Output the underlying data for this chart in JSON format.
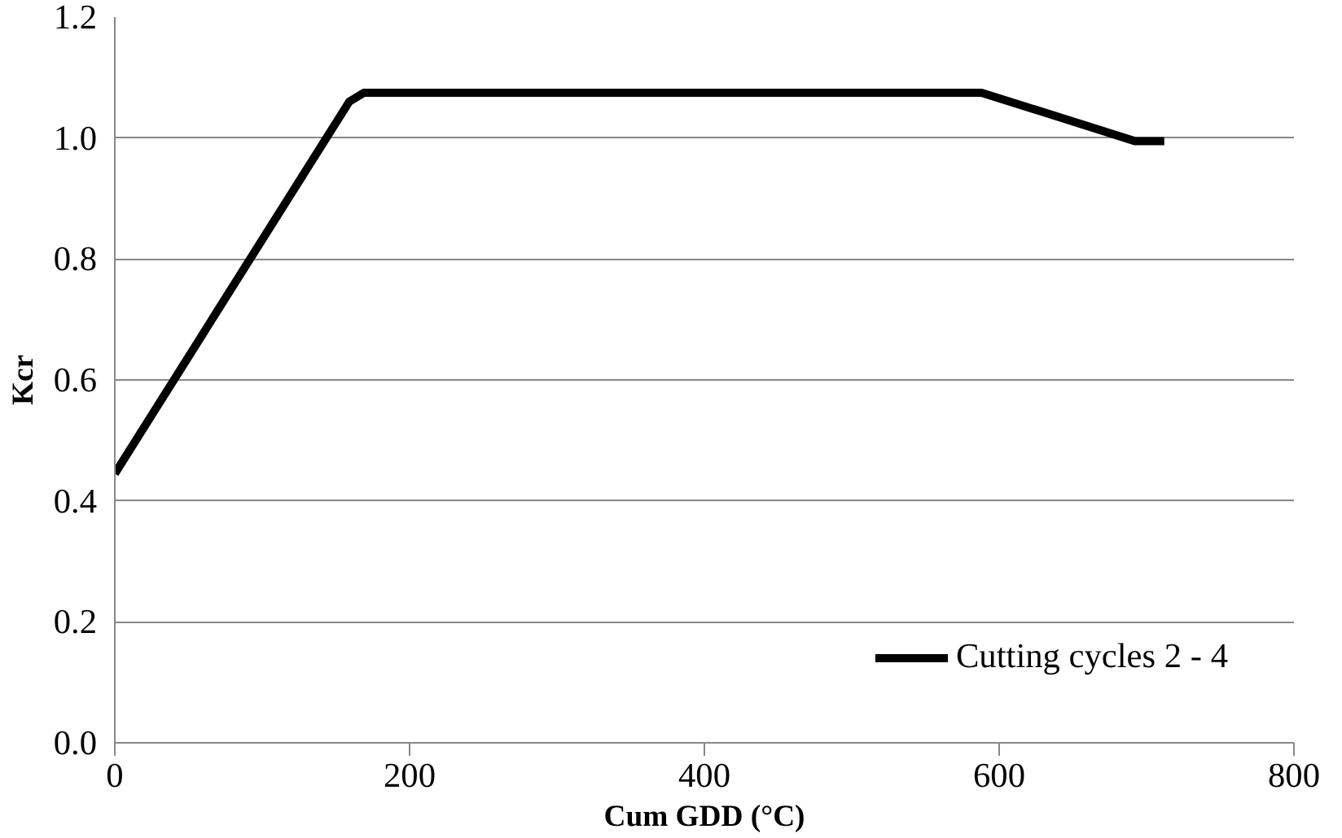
{
  "chart_data": {
    "type": "line",
    "xlabel": "Cum GDD (°C)",
    "ylabel": "Kcr",
    "series": [
      {
        "name": "Cutting cycles 2 - 4",
        "color": "#000000",
        "x": [
          0,
          159,
          169,
          588,
          692,
          712
        ],
        "values": [
          0.445,
          1.06,
          1.075,
          1.075,
          0.995,
          0.995
        ]
      }
    ],
    "xlim": [
      0,
      800
    ],
    "xticks": [
      0,
      200,
      400,
      600,
      800
    ],
    "ylim": [
      0,
      1.2
    ],
    "yticks": [
      {
        "value": 0,
        "label": "0.0"
      },
      0.2,
      0.4,
      0.6,
      0.8,
      {
        "value": 1,
        "label": "1.0"
      },
      1.2
    ],
    "grid": "y",
    "legend": "bottom right",
    "marker": "none",
    "line_style": "solid"
  }
}
